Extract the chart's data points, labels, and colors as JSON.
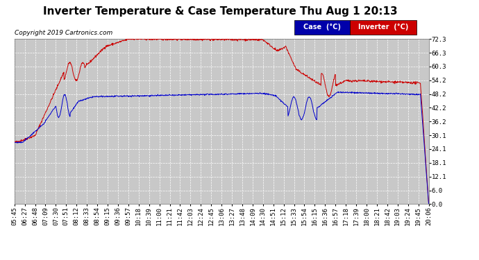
{
  "title": "Inverter Temperature & Case Temperature Thu Aug 1 20:13",
  "copyright": "Copyright 2019 Cartronics.com",
  "y_ticks": [
    0.0,
    6.0,
    12.1,
    18.1,
    24.1,
    30.1,
    36.2,
    42.2,
    48.2,
    54.2,
    60.3,
    66.3,
    72.3
  ],
  "x_labels": [
    "05:45",
    "06:27",
    "06:48",
    "07:09",
    "07:30",
    "07:51",
    "08:12",
    "08:33",
    "08:54",
    "09:15",
    "09:36",
    "09:57",
    "10:18",
    "10:39",
    "11:00",
    "11:21",
    "11:42",
    "12:03",
    "12:24",
    "12:45",
    "13:06",
    "13:27",
    "13:48",
    "14:09",
    "14:30",
    "14:51",
    "15:12",
    "15:33",
    "15:54",
    "16:15",
    "16:36",
    "16:57",
    "17:18",
    "17:39",
    "18:00",
    "18:21",
    "18:42",
    "19:03",
    "19:24",
    "19:45",
    "20:06"
  ],
  "fig_bg_color": "#ffffff",
  "plot_bg_color": "#c8c8c8",
  "grid_color": "#ffffff",
  "case_color": "#0000cc",
  "inverter_color": "#cc0000",
  "legend_case_bg": "#0000aa",
  "legend_inverter_bg": "#cc0000",
  "title_fontsize": 11,
  "tick_fontsize": 6.5,
  "copyright_fontsize": 6.5
}
